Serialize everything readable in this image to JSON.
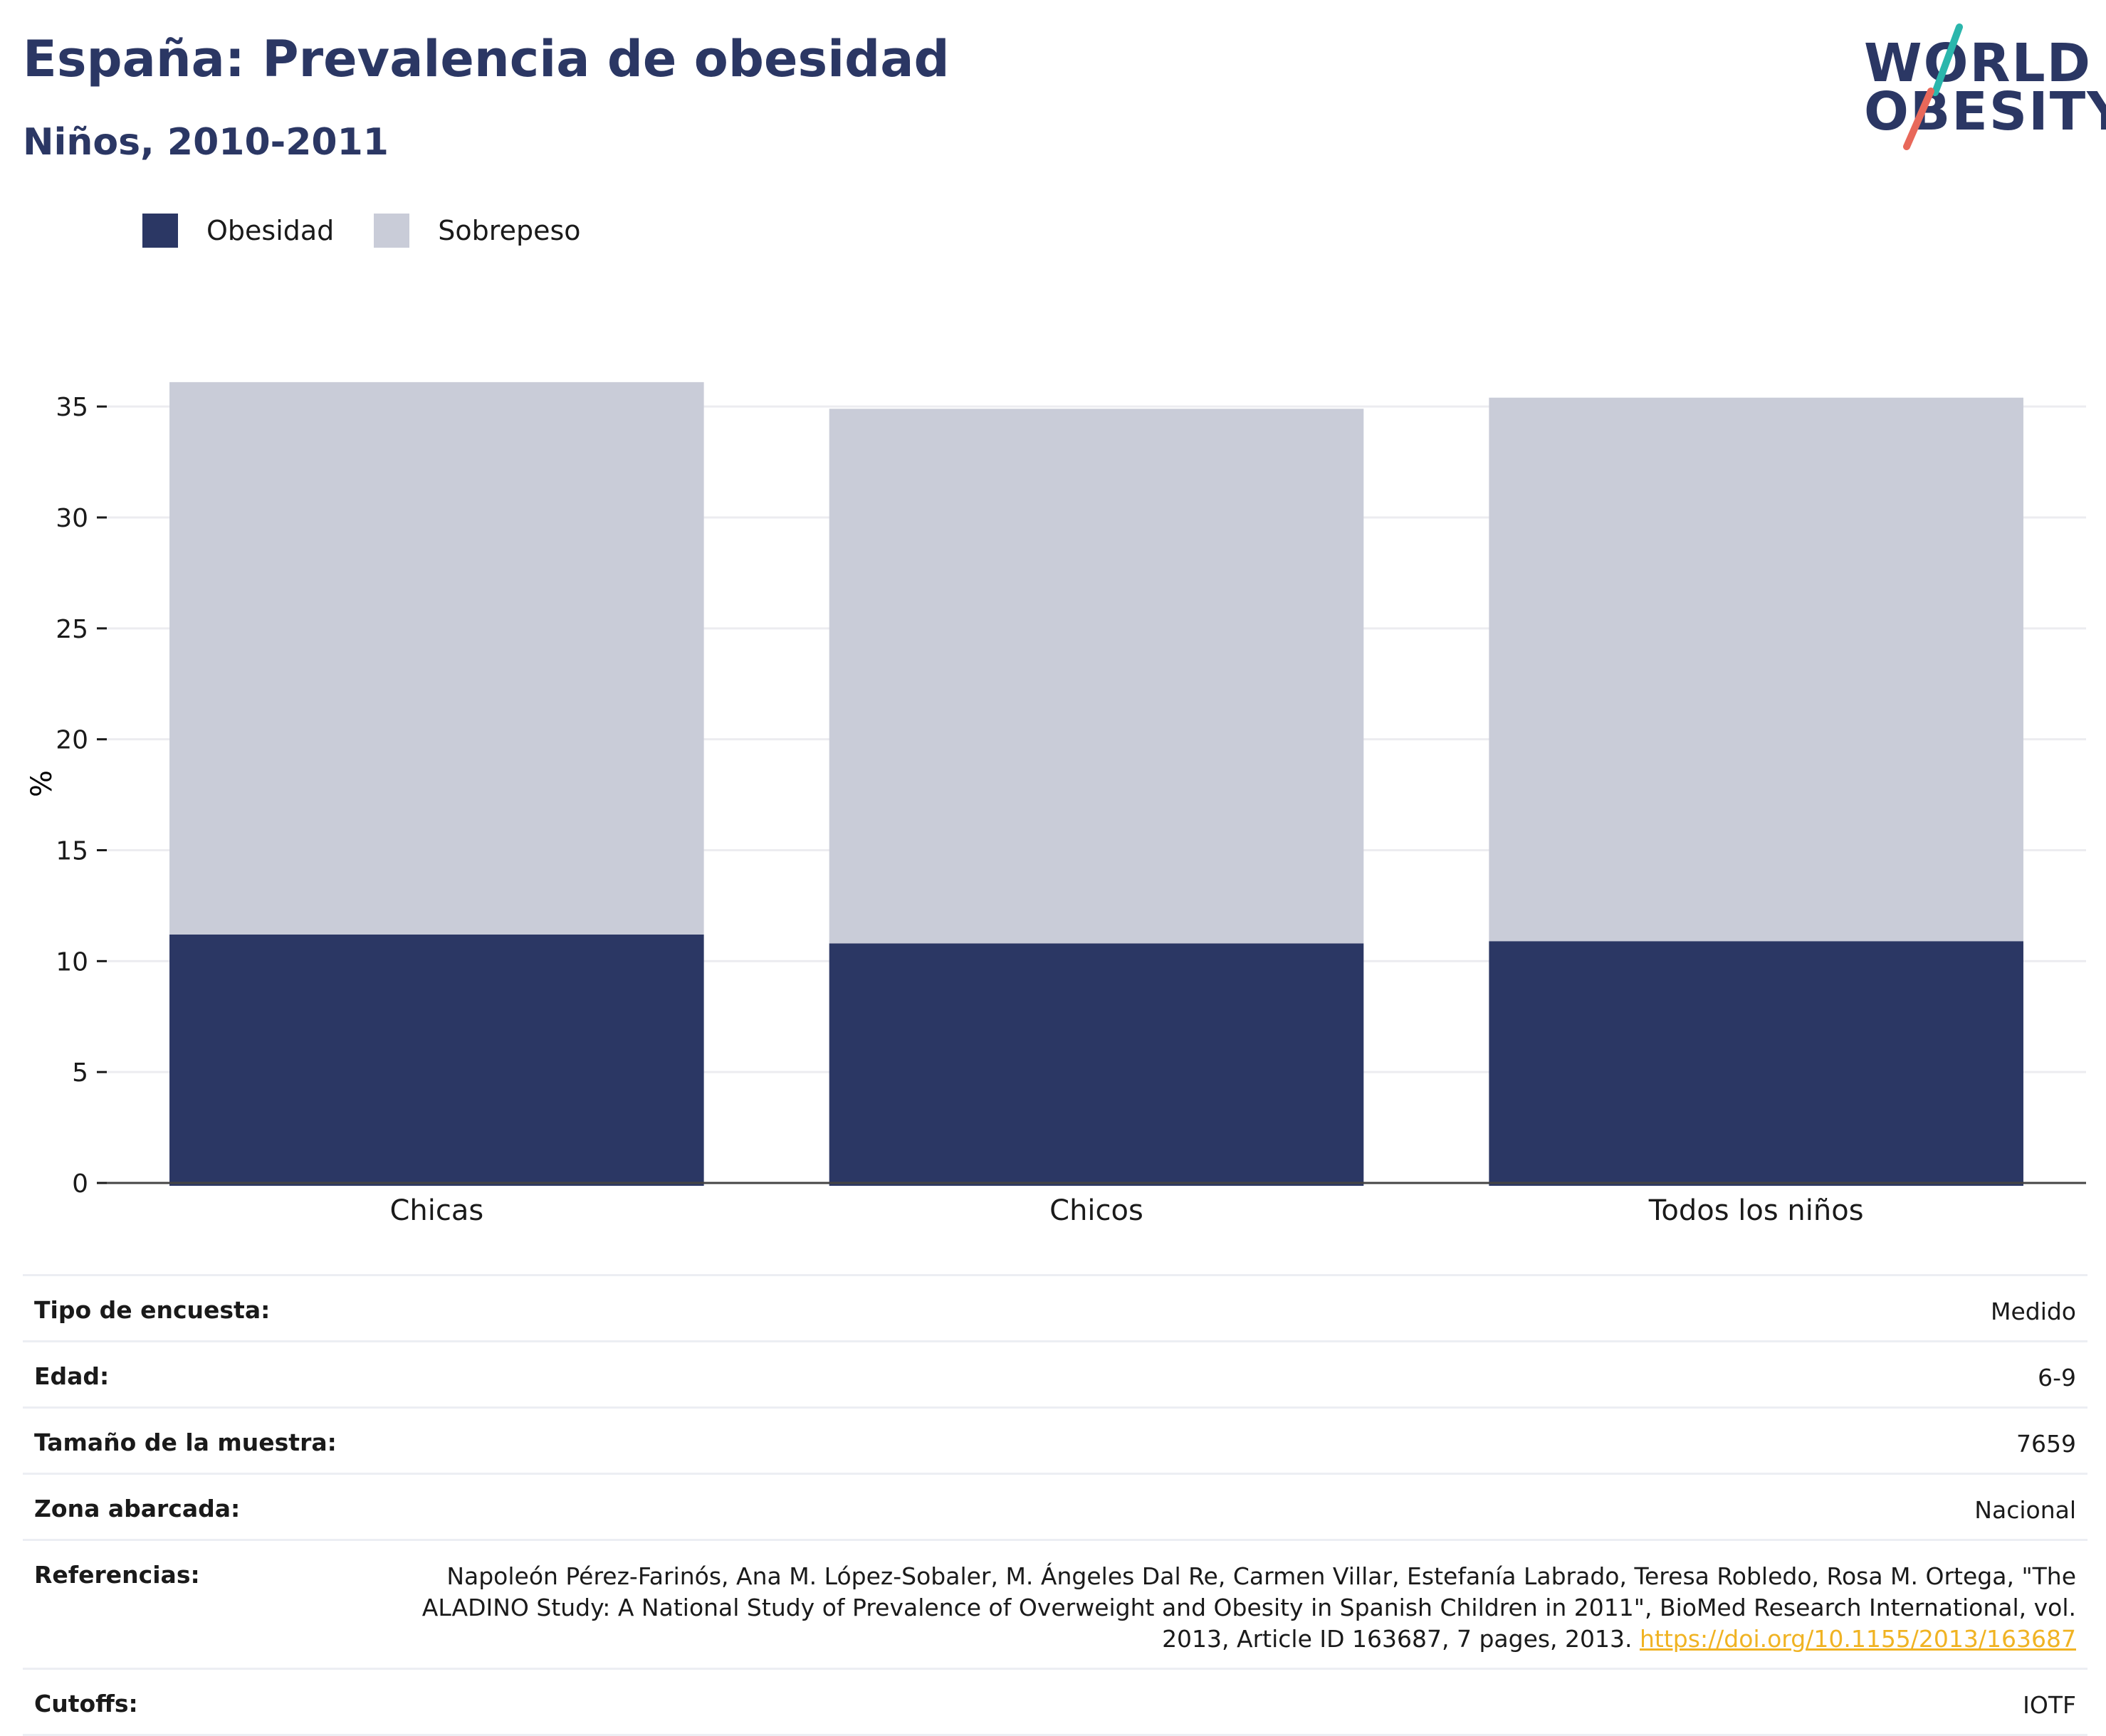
{
  "title": "España: Prevalencia de obesidad",
  "subtitle": "Niños, 2010-2011",
  "logo": {
    "line1": "WORLD",
    "line2": "OBESITY",
    "colors": {
      "navy": "#2b3764",
      "teal": "#2bb6ac",
      "coral": "#e8685a"
    }
  },
  "chart_data": {
    "type": "bar",
    "stacked": true,
    "categories": [
      "Chicas",
      "Chicos",
      "Todos los niños"
    ],
    "series": [
      {
        "name": "Obesidad",
        "color": "#2b3764",
        "values": [
          11.2,
          10.8,
          10.9
        ]
      },
      {
        "name": "Sobrepeso",
        "color": "#c9ccd8",
        "values": [
          24.9,
          24.1,
          24.5
        ]
      }
    ],
    "ylabel": "%",
    "ylim": [
      0,
      36
    ],
    "yticks": [
      0,
      5,
      10,
      15,
      20,
      25,
      30,
      35
    ],
    "grid": true,
    "legend_position": "top-left"
  },
  "meta": [
    {
      "key": "Tipo de encuesta:",
      "value": "Medido"
    },
    {
      "key": "Edad:",
      "value": "6-9"
    },
    {
      "key": "Tamaño de la muestra:",
      "value": "7659"
    },
    {
      "key": "Zona abarcada:",
      "value": "Nacional"
    },
    {
      "key": "Referencias:",
      "value": "Napoleón Pérez-Farinós, Ana M. López-Sobaler, M. Ángeles Dal Re, Carmen Villar, Estefanía Labrado, Teresa Robledo, Rosa M. Ortega, \"The ALADINO Study: A National Study of Prevalence of Overweight and Obesity in Spanish Children in 2011\", BioMed Research International, vol. 2013, Article ID 163687, 7 pages, 2013.",
      "link": "https://doi.org/10.1155/2013/163687"
    },
    {
      "key": "Cutoffs:",
      "value": "IOTF"
    }
  ]
}
